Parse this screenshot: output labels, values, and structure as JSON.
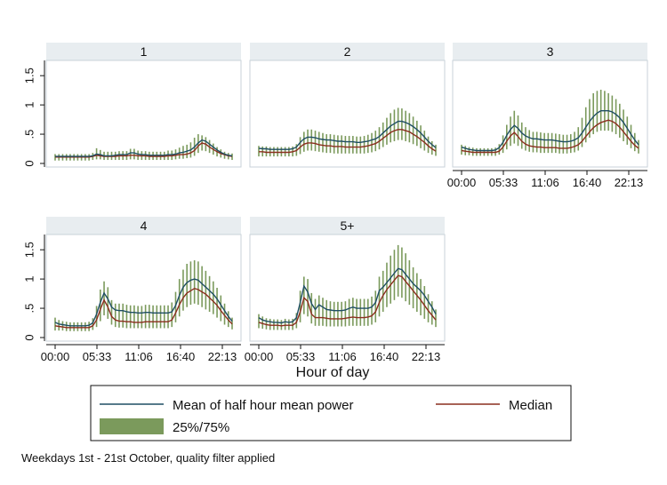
{
  "chart_data": {
    "type": "line",
    "xlabel": "Hour of day",
    "x_ticks": [
      "00:00",
      "05:33",
      "11:06",
      "16:40",
      "22:13"
    ],
    "y_ticks": [
      "0",
      ".5",
      "1",
      "1.5"
    ],
    "ylim": [
      0,
      1.7
    ],
    "x_values": [
      "00:00",
      "00:30",
      "01:00",
      "01:30",
      "02:00",
      "02:30",
      "03:00",
      "03:30",
      "04:00",
      "04:30",
      "05:00",
      "05:30",
      "06:00",
      "06:30",
      "07:00",
      "07:30",
      "08:00",
      "08:30",
      "09:00",
      "09:30",
      "10:00",
      "10:30",
      "11:00",
      "11:30",
      "12:00",
      "12:30",
      "13:00",
      "13:30",
      "14:00",
      "14:30",
      "15:00",
      "15:30",
      "16:00",
      "16:30",
      "17:00",
      "17:30",
      "18:00",
      "18:30",
      "19:00",
      "19:30",
      "20:00",
      "20:30",
      "21:00",
      "21:30",
      "22:00",
      "22:30",
      "23:00",
      "23:30"
    ],
    "legend": {
      "mean_label": "Mean of half hour mean power",
      "median_label": "Median",
      "band_label": "25%/75%"
    },
    "colors": {
      "mean": "#1f4e63",
      "median": "#8a2e1e",
      "band": "#7b9a5c",
      "strip": "#e8edf0",
      "frame": "#c8d2d8"
    },
    "note": "Weekdays 1st - 21st October, quality filter applied",
    "panels": [
      {
        "label": "1",
        "mean": [
          0.12,
          0.12,
          0.12,
          0.12,
          0.12,
          0.12,
          0.12,
          0.12,
          0.12,
          0.12,
          0.13,
          0.16,
          0.15,
          0.13,
          0.13,
          0.13,
          0.14,
          0.15,
          0.15,
          0.15,
          0.18,
          0.18,
          0.16,
          0.15,
          0.15,
          0.14,
          0.14,
          0.14,
          0.14,
          0.14,
          0.15,
          0.15,
          0.16,
          0.18,
          0.19,
          0.21,
          0.23,
          0.28,
          0.35,
          0.4,
          0.38,
          0.33,
          0.28,
          0.23,
          0.19,
          0.16,
          0.14,
          0.13
        ],
        "median": [
          0.11,
          0.11,
          0.11,
          0.11,
          0.11,
          0.11,
          0.11,
          0.11,
          0.11,
          0.11,
          0.12,
          0.14,
          0.13,
          0.12,
          0.12,
          0.12,
          0.12,
          0.13,
          0.13,
          0.13,
          0.14,
          0.14,
          0.13,
          0.13,
          0.13,
          0.12,
          0.12,
          0.12,
          0.12,
          0.12,
          0.13,
          0.13,
          0.14,
          0.15,
          0.15,
          0.16,
          0.18,
          0.22,
          0.3,
          0.35,
          0.33,
          0.28,
          0.24,
          0.2,
          0.17,
          0.15,
          0.13,
          0.12
        ],
        "q25": [
          0.05,
          0.05,
          0.05,
          0.05,
          0.05,
          0.05,
          0.05,
          0.05,
          0.05,
          0.05,
          0.06,
          0.07,
          0.07,
          0.06,
          0.06,
          0.06,
          0.06,
          0.06,
          0.06,
          0.06,
          0.07,
          0.07,
          0.06,
          0.06,
          0.06,
          0.06,
          0.06,
          0.06,
          0.06,
          0.06,
          0.06,
          0.06,
          0.07,
          0.08,
          0.08,
          0.09,
          0.1,
          0.13,
          0.18,
          0.22,
          0.21,
          0.18,
          0.15,
          0.12,
          0.1,
          0.08,
          0.07,
          0.06
        ],
        "q75": [
          0.16,
          0.16,
          0.16,
          0.16,
          0.16,
          0.16,
          0.16,
          0.16,
          0.16,
          0.16,
          0.18,
          0.26,
          0.23,
          0.2,
          0.2,
          0.2,
          0.2,
          0.21,
          0.21,
          0.21,
          0.25,
          0.25,
          0.22,
          0.21,
          0.21,
          0.2,
          0.2,
          0.2,
          0.2,
          0.2,
          0.22,
          0.22,
          0.24,
          0.27,
          0.3,
          0.32,
          0.36,
          0.44,
          0.5,
          0.48,
          0.45,
          0.4,
          0.34,
          0.28,
          0.24,
          0.2,
          0.18,
          0.17
        ]
      },
      {
        "label": "2",
        "mean": [
          0.26,
          0.25,
          0.25,
          0.24,
          0.24,
          0.24,
          0.24,
          0.24,
          0.24,
          0.25,
          0.28,
          0.36,
          0.42,
          0.45,
          0.45,
          0.44,
          0.42,
          0.41,
          0.4,
          0.4,
          0.39,
          0.38,
          0.38,
          0.37,
          0.37,
          0.37,
          0.36,
          0.36,
          0.37,
          0.38,
          0.4,
          0.42,
          0.46,
          0.52,
          0.58,
          0.64,
          0.68,
          0.72,
          0.72,
          0.7,
          0.67,
          0.63,
          0.58,
          0.52,
          0.45,
          0.38,
          0.32,
          0.27
        ],
        "median": [
          0.2,
          0.2,
          0.19,
          0.19,
          0.19,
          0.19,
          0.19,
          0.19,
          0.19,
          0.2,
          0.22,
          0.28,
          0.33,
          0.35,
          0.35,
          0.34,
          0.32,
          0.31,
          0.3,
          0.3,
          0.29,
          0.29,
          0.29,
          0.28,
          0.28,
          0.28,
          0.28,
          0.28,
          0.29,
          0.3,
          0.32,
          0.34,
          0.38,
          0.43,
          0.48,
          0.53,
          0.56,
          0.58,
          0.58,
          0.56,
          0.54,
          0.5,
          0.46,
          0.41,
          0.36,
          0.3,
          0.25,
          0.21
        ],
        "q25": [
          0.12,
          0.12,
          0.12,
          0.12,
          0.12,
          0.12,
          0.12,
          0.12,
          0.12,
          0.12,
          0.13,
          0.16,
          0.2,
          0.22,
          0.22,
          0.21,
          0.2,
          0.19,
          0.18,
          0.18,
          0.17,
          0.17,
          0.17,
          0.17,
          0.17,
          0.17,
          0.17,
          0.17,
          0.17,
          0.18,
          0.19,
          0.21,
          0.24,
          0.28,
          0.32,
          0.36,
          0.38,
          0.4,
          0.4,
          0.38,
          0.36,
          0.33,
          0.3,
          0.26,
          0.22,
          0.18,
          0.15,
          0.13
        ],
        "q75": [
          0.3,
          0.29,
          0.29,
          0.28,
          0.28,
          0.28,
          0.28,
          0.28,
          0.28,
          0.29,
          0.33,
          0.45,
          0.54,
          0.58,
          0.58,
          0.56,
          0.54,
          0.52,
          0.5,
          0.5,
          0.49,
          0.48,
          0.48,
          0.47,
          0.47,
          0.47,
          0.46,
          0.46,
          0.47,
          0.49,
          0.52,
          0.56,
          0.62,
          0.7,
          0.78,
          0.86,
          0.92,
          0.95,
          0.94,
          0.9,
          0.86,
          0.8,
          0.73,
          0.65,
          0.56,
          0.46,
          0.38,
          0.32
        ]
      },
      {
        "label": "3",
        "mean": [
          0.28,
          0.26,
          0.24,
          0.23,
          0.22,
          0.22,
          0.22,
          0.22,
          0.22,
          0.23,
          0.27,
          0.36,
          0.48,
          0.58,
          0.65,
          0.6,
          0.52,
          0.47,
          0.44,
          0.42,
          0.42,
          0.41,
          0.4,
          0.4,
          0.4,
          0.39,
          0.38,
          0.37,
          0.37,
          0.38,
          0.4,
          0.44,
          0.52,
          0.62,
          0.72,
          0.8,
          0.86,
          0.9,
          0.9,
          0.9,
          0.88,
          0.84,
          0.78,
          0.7,
          0.6,
          0.5,
          0.4,
          0.32
        ],
        "median": [
          0.22,
          0.21,
          0.2,
          0.19,
          0.19,
          0.19,
          0.19,
          0.19,
          0.19,
          0.19,
          0.21,
          0.28,
          0.38,
          0.47,
          0.53,
          0.46,
          0.38,
          0.33,
          0.3,
          0.29,
          0.28,
          0.28,
          0.27,
          0.27,
          0.27,
          0.27,
          0.26,
          0.26,
          0.26,
          0.27,
          0.29,
          0.32,
          0.38,
          0.46,
          0.54,
          0.61,
          0.66,
          0.7,
          0.72,
          0.74,
          0.72,
          0.68,
          0.62,
          0.54,
          0.46,
          0.38,
          0.31,
          0.26
        ],
        "q25": [
          0.15,
          0.14,
          0.14,
          0.13,
          0.13,
          0.13,
          0.13,
          0.13,
          0.13,
          0.13,
          0.15,
          0.18,
          0.24,
          0.3,
          0.34,
          0.3,
          0.25,
          0.22,
          0.2,
          0.19,
          0.19,
          0.18,
          0.18,
          0.18,
          0.18,
          0.18,
          0.17,
          0.17,
          0.17,
          0.18,
          0.19,
          0.22,
          0.28,
          0.36,
          0.44,
          0.5,
          0.54,
          0.56,
          0.56,
          0.56,
          0.54,
          0.5,
          0.44,
          0.38,
          0.32,
          0.26,
          0.21,
          0.17
        ],
        "q75": [
          0.32,
          0.3,
          0.28,
          0.27,
          0.26,
          0.26,
          0.26,
          0.26,
          0.26,
          0.27,
          0.33,
          0.48,
          0.66,
          0.8,
          0.9,
          0.82,
          0.7,
          0.62,
          0.57,
          0.54,
          0.54,
          0.53,
          0.52,
          0.52,
          0.52,
          0.51,
          0.5,
          0.49,
          0.49,
          0.5,
          0.54,
          0.62,
          0.78,
          0.96,
          1.1,
          1.2,
          1.24,
          1.26,
          1.24,
          1.2,
          1.16,
          1.1,
          1.02,
          0.92,
          0.8,
          0.66,
          0.52,
          0.4
        ]
      },
      {
        "label": "4",
        "mean": [
          0.26,
          0.23,
          0.22,
          0.21,
          0.2,
          0.2,
          0.2,
          0.2,
          0.2,
          0.21,
          0.25,
          0.4,
          0.6,
          0.76,
          0.66,
          0.52,
          0.47,
          0.46,
          0.46,
          0.44,
          0.43,
          0.43,
          0.42,
          0.42,
          0.43,
          0.43,
          0.42,
          0.42,
          0.42,
          0.42,
          0.42,
          0.44,
          0.55,
          0.72,
          0.86,
          0.94,
          0.98,
          1.0,
          0.98,
          0.92,
          0.86,
          0.8,
          0.74,
          0.66,
          0.56,
          0.46,
          0.36,
          0.28
        ],
        "median": [
          0.2,
          0.19,
          0.18,
          0.17,
          0.17,
          0.17,
          0.17,
          0.17,
          0.17,
          0.17,
          0.2,
          0.3,
          0.48,
          0.64,
          0.52,
          0.36,
          0.3,
          0.28,
          0.28,
          0.27,
          0.27,
          0.26,
          0.26,
          0.26,
          0.27,
          0.27,
          0.27,
          0.27,
          0.27,
          0.27,
          0.27,
          0.3,
          0.42,
          0.56,
          0.68,
          0.76,
          0.8,
          0.84,
          0.82,
          0.78,
          0.74,
          0.68,
          0.62,
          0.55,
          0.46,
          0.38,
          0.3,
          0.23
        ],
        "q25": [
          0.12,
          0.12,
          0.12,
          0.11,
          0.11,
          0.11,
          0.11,
          0.11,
          0.11,
          0.11,
          0.13,
          0.18,
          0.28,
          0.38,
          0.32,
          0.22,
          0.18,
          0.17,
          0.17,
          0.16,
          0.16,
          0.16,
          0.16,
          0.16,
          0.16,
          0.16,
          0.16,
          0.16,
          0.16,
          0.16,
          0.16,
          0.18,
          0.26,
          0.36,
          0.46,
          0.52,
          0.56,
          0.58,
          0.56,
          0.52,
          0.48,
          0.44,
          0.4,
          0.34,
          0.28,
          0.22,
          0.18,
          0.14
        ],
        "q75": [
          0.34,
          0.3,
          0.28,
          0.27,
          0.26,
          0.26,
          0.26,
          0.26,
          0.26,
          0.27,
          0.33,
          0.54,
          0.82,
          0.96,
          0.86,
          0.64,
          0.58,
          0.58,
          0.58,
          0.56,
          0.55,
          0.55,
          0.54,
          0.54,
          0.56,
          0.56,
          0.55,
          0.55,
          0.55,
          0.55,
          0.55,
          0.6,
          0.78,
          1.0,
          1.16,
          1.26,
          1.3,
          1.32,
          1.3,
          1.22,
          1.14,
          1.05,
          0.96,
          0.85,
          0.72,
          0.58,
          0.45,
          0.34
        ]
      },
      {
        "label": "5+",
        "mean": [
          0.34,
          0.3,
          0.28,
          0.27,
          0.26,
          0.26,
          0.25,
          0.27,
          0.26,
          0.27,
          0.34,
          0.6,
          0.88,
          0.78,
          0.58,
          0.48,
          0.56,
          0.52,
          0.48,
          0.47,
          0.46,
          0.46,
          0.46,
          0.47,
          0.5,
          0.52,
          0.5,
          0.5,
          0.5,
          0.5,
          0.52,
          0.6,
          0.8,
          0.86,
          0.94,
          1.02,
          1.1,
          1.18,
          1.16,
          1.08,
          1.0,
          0.92,
          0.86,
          0.8,
          0.72,
          0.62,
          0.52,
          0.4
        ],
        "median": [
          0.26,
          0.24,
          0.22,
          0.21,
          0.21,
          0.21,
          0.2,
          0.21,
          0.21,
          0.21,
          0.26,
          0.44,
          0.68,
          0.62,
          0.4,
          0.34,
          0.34,
          0.34,
          0.33,
          0.32,
          0.32,
          0.32,
          0.32,
          0.33,
          0.34,
          0.35,
          0.34,
          0.34,
          0.34,
          0.35,
          0.37,
          0.44,
          0.6,
          0.72,
          0.82,
          0.9,
          0.98,
          1.06,
          1.04,
          0.96,
          0.88,
          0.8,
          0.72,
          0.64,
          0.55,
          0.46,
          0.38,
          0.3
        ],
        "q25": [
          0.16,
          0.15,
          0.14,
          0.13,
          0.13,
          0.13,
          0.13,
          0.13,
          0.13,
          0.13,
          0.16,
          0.26,
          0.4,
          0.36,
          0.24,
          0.2,
          0.2,
          0.2,
          0.19,
          0.19,
          0.19,
          0.19,
          0.19,
          0.19,
          0.2,
          0.2,
          0.2,
          0.2,
          0.2,
          0.2,
          0.22,
          0.26,
          0.36,
          0.44,
          0.52,
          0.58,
          0.64,
          0.7,
          0.68,
          0.62,
          0.56,
          0.5,
          0.44,
          0.38,
          0.32,
          0.26,
          0.22,
          0.18
        ],
        "q75": [
          0.4,
          0.36,
          0.33,
          0.32,
          0.31,
          0.31,
          0.3,
          0.32,
          0.31,
          0.32,
          0.42,
          0.8,
          1.04,
          1.0,
          0.76,
          0.66,
          0.72,
          0.68,
          0.64,
          0.62,
          0.61,
          0.61,
          0.61,
          0.62,
          0.66,
          0.68,
          0.66,
          0.66,
          0.66,
          0.66,
          0.7,
          0.8,
          1.04,
          1.14,
          1.28,
          1.4,
          1.5,
          1.58,
          1.54,
          1.44,
          1.32,
          1.2,
          1.1,
          1.0,
          0.88,
          0.74,
          0.62,
          0.48
        ]
      }
    ]
  }
}
